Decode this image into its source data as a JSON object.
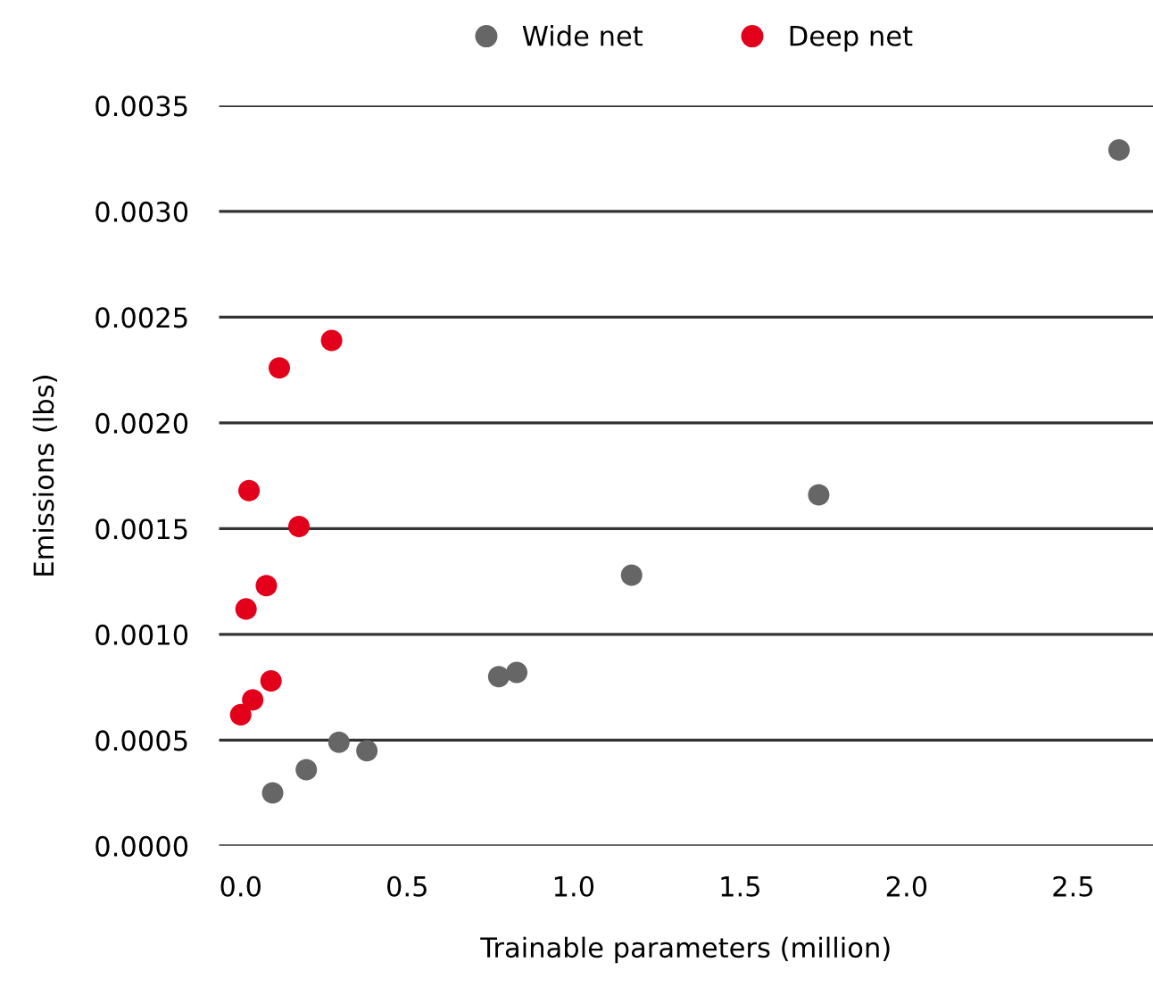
{
  "chart_data": {
    "type": "scatter",
    "xlabel": "Trainable parameters (million)",
    "ylabel": "Emissions (lbs)",
    "xlim": [
      -0.065,
      2.74
    ],
    "xticks": [
      {
        "value": 0,
        "label": "0.0"
      },
      0.5,
      {
        "value": 1,
        "label": "1.0"
      },
      1.5,
      {
        "value": 2,
        "label": "2.0"
      },
      2.5
    ],
    "ylim": [
      0,
      0.0035
    ],
    "yticks": [
      {
        "value": 0,
        "label": "0.0000"
      },
      0.0005,
      {
        "value": 0.001,
        "label": "0.0010"
      },
      0.0015,
      {
        "value": 0.002,
        "label": "0.0020"
      },
      0.0025,
      {
        "value": 0.003,
        "label": "0.0030"
      },
      0.0035
    ],
    "grid": "y",
    "legend": "top",
    "marker": "circle",
    "series": [
      {
        "name": "Wide net",
        "color": "#666666",
        "x": [
          0.096,
          0.197,
          0.295,
          0.379,
          0.775,
          0.829,
          1.174,
          1.736,
          2.638
        ],
        "values": [
          0.00025,
          0.00036,
          0.00049,
          0.00045,
          0.0008,
          0.00082,
          0.00128,
          0.00166,
          0.00329
        ]
      },
      {
        "name": "Deep net",
        "color": "#e2001a",
        "x": [
          0.116,
          0.273,
          0.025,
          0.175,
          0.077,
          0.016,
          0.091,
          0.036,
          0.0
        ],
        "values": [
          0.00226,
          0.00239,
          0.00168,
          0.00151,
          0.00123,
          0.00112,
          0.00078,
          0.00069,
          0.00062
        ]
      }
    ]
  }
}
